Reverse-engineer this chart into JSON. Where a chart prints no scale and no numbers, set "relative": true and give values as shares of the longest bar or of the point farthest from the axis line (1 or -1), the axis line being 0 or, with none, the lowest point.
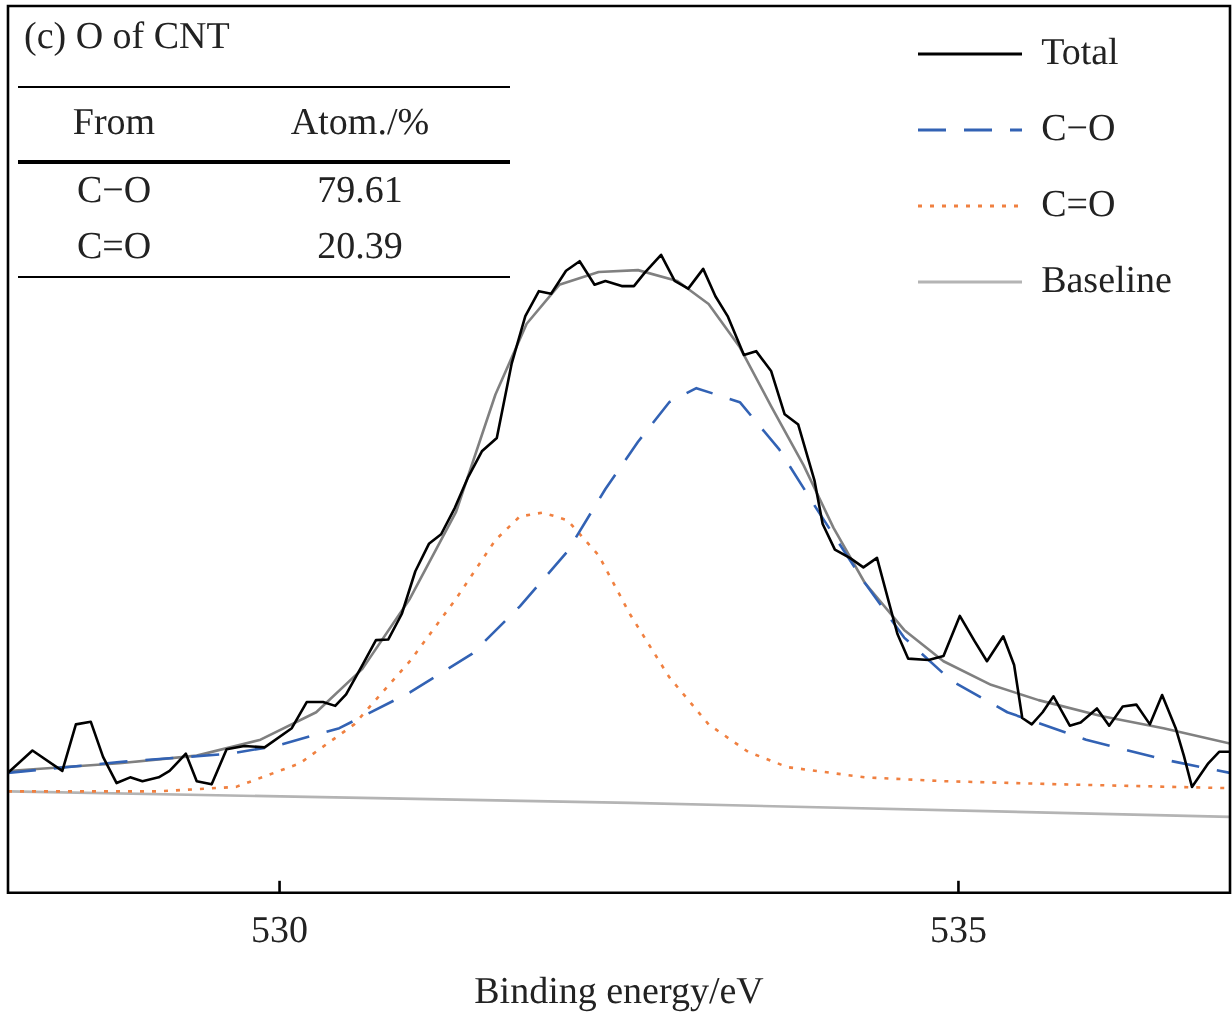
{
  "chart_data": {
    "type": "line",
    "title": "(c) O of CNT",
    "xlabel": "Binding energy/eV",
    "relative": true,
    "xlim": [
      528,
      537
    ],
    "xticks": [
      530,
      535
    ],
    "grid": false,
    "legend": "top right",
    "marker": "none",
    "annotations": [
      "From",
      "Atom./%",
      "C−O",
      "79.61",
      "C=O",
      "20.39"
    ],
    "series": [
      {
        "name": "Total",
        "color": "#000000",
        "line_style": "solid",
        "x": [
          528.0,
          528.18,
          528.4,
          528.5,
          528.61,
          528.7,
          528.8,
          528.9,
          528.99,
          529.11,
          529.19,
          529.31,
          529.39,
          529.5,
          529.61,
          529.74,
          529.89,
          530.09,
          530.2,
          530.32,
          530.41,
          530.49,
          530.61,
          530.71,
          530.8,
          530.9,
          531.0,
          531.1,
          531.19,
          531.29,
          531.39,
          531.49,
          531.6,
          531.71,
          531.81,
          531.91,
          532.0,
          532.11,
          532.21,
          532.32,
          532.4,
          532.52,
          532.61,
          532.69,
          532.81,
          532.91,
          533.01,
          533.12,
          533.21,
          533.3,
          533.42,
          533.51,
          533.62,
          533.72,
          533.82,
          533.94,
          534.0,
          534.09,
          534.2,
          534.3,
          534.4,
          534.55,
          534.63,
          534.78,
          534.89,
          535.01,
          535.12,
          535.21,
          535.33,
          535.41,
          535.47,
          535.54,
          535.62,
          535.7,
          535.82,
          535.9,
          536.02,
          536.11,
          536.21,
          536.31,
          536.41,
          536.5,
          536.6,
          536.66,
          536.72,
          536.84,
          536.92,
          537.0
        ],
        "values": [
          0.188,
          0.223,
          0.191,
          0.264,
          0.268,
          0.213,
          0.172,
          0.181,
          0.175,
          0.181,
          0.191,
          0.218,
          0.175,
          0.17,
          0.225,
          0.23,
          0.228,
          0.258,
          0.299,
          0.299,
          0.293,
          0.311,
          0.357,
          0.396,
          0.397,
          0.437,
          0.504,
          0.547,
          0.562,
          0.603,
          0.652,
          0.692,
          0.713,
          0.83,
          0.904,
          0.943,
          0.939,
          0.975,
          0.99,
          0.953,
          0.959,
          0.951,
          0.951,
          0.972,
          1.0,
          0.959,
          0.947,
          0.978,
          0.935,
          0.904,
          0.843,
          0.849,
          0.818,
          0.75,
          0.734,
          0.646,
          0.578,
          0.538,
          0.525,
          0.51,
          0.525,
          0.406,
          0.367,
          0.365,
          0.371,
          0.434,
          0.394,
          0.363,
          0.402,
          0.357,
          0.274,
          0.264,
          0.283,
          0.308,
          0.262,
          0.267,
          0.289,
          0.262,
          0.292,
          0.295,
          0.264,
          0.31,
          0.258,
          0.215,
          0.166,
          0.203,
          0.221,
          0.221
        ]
      },
      {
        "name": "C−O",
        "color": "#3262b4",
        "line_style": "dashed",
        "x": [
          528.0,
          528.82,
          529.63,
          529.97,
          530.44,
          530.96,
          531.42,
          531.77,
          532.12,
          532.4,
          532.64,
          532.87,
          533.07,
          533.39,
          533.68,
          533.97,
          534.31,
          534.6,
          534.95,
          535.36,
          535.94,
          536.51,
          537.0
        ],
        "values": [
          0.188,
          0.205,
          0.218,
          0.23,
          0.258,
          0.314,
          0.375,
          0.449,
          0.535,
          0.633,
          0.707,
          0.769,
          0.791,
          0.769,
          0.695,
          0.597,
          0.486,
          0.4,
          0.332,
          0.283,
          0.24,
          0.209,
          0.188
        ]
      },
      {
        "name": "C=O",
        "color": "#f08040",
        "line_style": "dotted",
        "x": [
          528.0,
          529.11,
          529.68,
          530.15,
          530.55,
          530.96,
          531.3,
          531.59,
          531.77,
          531.94,
          532.12,
          532.35,
          532.58,
          532.87,
          533.16,
          533.45,
          533.74,
          534.31,
          534.89,
          535.76,
          537.0
        ],
        "values": [
          0.159,
          0.159,
          0.166,
          0.203,
          0.264,
          0.363,
          0.461,
          0.553,
          0.59,
          0.596,
          0.584,
          0.529,
          0.437,
          0.338,
          0.264,
          0.221,
          0.197,
          0.181,
          0.175,
          0.17,
          0.164
        ]
      },
      {
        "name": "Baseline",
        "color": "#b4b4b4",
        "line_style": "solid",
        "x": [
          528.0,
          532.58,
          537.0
        ],
        "values": [
          0.159,
          0.141,
          0.119
        ]
      },
      {
        "color": "#808080",
        "line_style": "solid",
        "x": [
          528.0,
          528.82,
          529.39,
          529.86,
          530.27,
          530.61,
          530.96,
          531.3,
          531.59,
          531.82,
          532.06,
          532.35,
          532.64,
          532.93,
          533.16,
          533.39,
          533.62,
          533.86,
          534.08,
          534.31,
          534.6,
          534.89,
          535.24,
          535.59,
          536.05,
          536.51,
          537.0
        ],
        "values": [
          0.191,
          0.203,
          0.215,
          0.24,
          0.283,
          0.351,
          0.461,
          0.597,
          0.781,
          0.892,
          0.953,
          0.973,
          0.976,
          0.959,
          0.923,
          0.855,
          0.763,
          0.67,
          0.572,
          0.486,
          0.412,
          0.363,
          0.326,
          0.302,
          0.277,
          0.258,
          0.234
        ]
      }
    ]
  }
}
